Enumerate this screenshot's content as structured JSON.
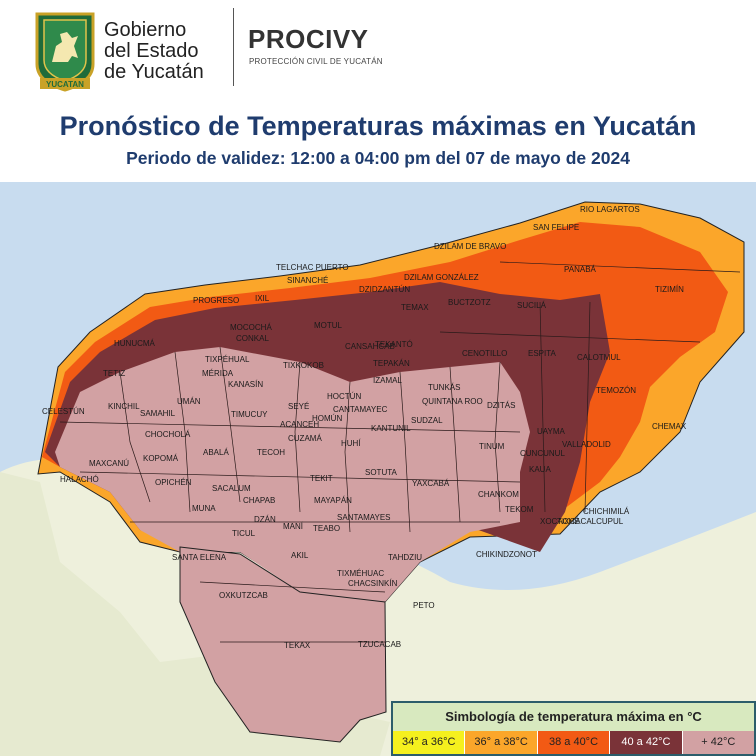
{
  "header": {
    "gov_line1": "Gobierno",
    "gov_line2": "del Estado",
    "gov_line3": "de Yucatán",
    "shield_caption": "YUCATAN",
    "brand": "PROCIVY",
    "brand_sub": "PROTECCIÓN CIVIL DE YUCATÁN",
    "title": "Pronóstico de Temperaturas máximas en Yucatán",
    "subtitle": "Periodo de validez: 12:00 a 04:00 pm del 07 de mayo de 2024"
  },
  "map": {
    "sea_color": "#c8dcef",
    "land_color": "#eef0dc",
    "municipalities": [
      "RIO LAGARTOS",
      "SAN FELIPE",
      "DZILAM DE BRAVO",
      "TELCHAC PUERTO",
      "DZILAM GONZÁLEZ",
      "SINANCHÉ",
      "DZIDZANTÚN",
      "PANABÁ",
      "TIZIMÍN",
      "PROGRESO",
      "IXIL",
      "TEMAX",
      "BUCTZOTZ",
      "SUCILÁ",
      "MOTUL",
      "CANSAHCAB",
      "CONKAL",
      "MOCOCHÁ",
      "HUNUCMÁ",
      "TEKANTÓ",
      "CENOTILLO",
      "ESPITA",
      "CALOTMUL",
      "TIXPÉHUAL",
      "MÉRIDA",
      "TIXKOKOB",
      "TEPAKÁN",
      "KANASÍN",
      "IZAMAL",
      "TUNKÁS",
      "TEMOZÓN",
      "TETIZ",
      "CELESTÚN",
      "KINCHIL",
      "SAMAHIL",
      "UMÁN",
      "TIMUCUY",
      "HOCTÚN",
      "QUINTANA ROO",
      "DZITÁS",
      "CHEMAX",
      "CHOCHOLÁ",
      "ACANCEH",
      "CANTAMAYEC",
      "SEYÉ",
      "HOMÚN",
      "CUZAMÁ",
      "HUHÍ",
      "KANTUNIL",
      "SUDZAL",
      "TINUM",
      "UAYMA",
      "VALLADOLID",
      "MAXCANÚ",
      "KOPOMÁ",
      "ABALÁ",
      "TECOH",
      "CHANKOM",
      "KAUA",
      "HALACHÓ",
      "OPICHÉN",
      "TEKIT",
      "SOTUTA",
      "YAXCABÁ",
      "SACALUM",
      "MUNA",
      "CHAPAB",
      "MAYAPÁN",
      "TEKOM",
      "CHICHIMILÁ",
      "XOCACHÉ",
      "CUNCUNUL",
      "TIXCACALCUPUL",
      "TICUL",
      "DZÁN",
      "MANÍ",
      "TEABO",
      "SANTAMAYES",
      "CHIKINDZONOT",
      "SANTA ELENA",
      "AKIL",
      "TAHDZIU",
      "CHACSINKÍN",
      "TIXMÉHUAC",
      "PETO",
      "OXKUTZCAB",
      "TEKAX",
      "TZUCACAB"
    ]
  },
  "legend": {
    "title": "Simbología de temperatura máxima en °C",
    "items": [
      {
        "label": "34° a 36°C",
        "color": "#f5f01e",
        "text_color": "#222222"
      },
      {
        "label": "36° a 38°C",
        "color": "#fba62a",
        "text_color": "#222222"
      },
      {
        "label": "38 a 40°C",
        "color": "#f25a14",
        "text_color": "#222222"
      },
      {
        "label": "40 a 42°C",
        "color": "#7a3338",
        "text_color": "#ffffff"
      },
      {
        "label": "+ 42°C",
        "color": "#d2a1a3",
        "text_color": "#222222"
      }
    ]
  }
}
